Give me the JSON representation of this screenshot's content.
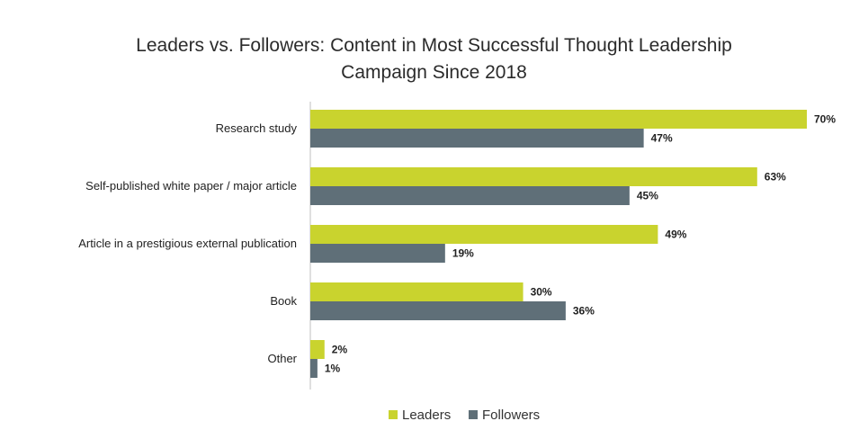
{
  "chart_data": {
    "type": "bar",
    "orientation": "horizontal",
    "title_lines": [
      "Leaders vs. Followers: Content in Most Successful Thought Leadership",
      "Campaign Since 2018"
    ],
    "categories": [
      "Research study",
      "Self-published white paper / major article",
      "Article in a prestigious external publication",
      "Book",
      "Other"
    ],
    "series": [
      {
        "name": "Leaders",
        "color": "#c9d32e",
        "values": [
          70,
          63,
          49,
          30,
          2
        ],
        "labels": [
          "70%",
          "63%",
          "49%",
          "30%",
          "2%"
        ]
      },
      {
        "name": "Followers",
        "color": "#5f6f78",
        "values": [
          47,
          45,
          19,
          36,
          1
        ],
        "labels": [
          "47%",
          "45%",
          "19%",
          "36%",
          "1%"
        ]
      }
    ],
    "value_unit": "%",
    "xlim": [
      0,
      70
    ],
    "grid": false,
    "legend_position": "bottom"
  }
}
